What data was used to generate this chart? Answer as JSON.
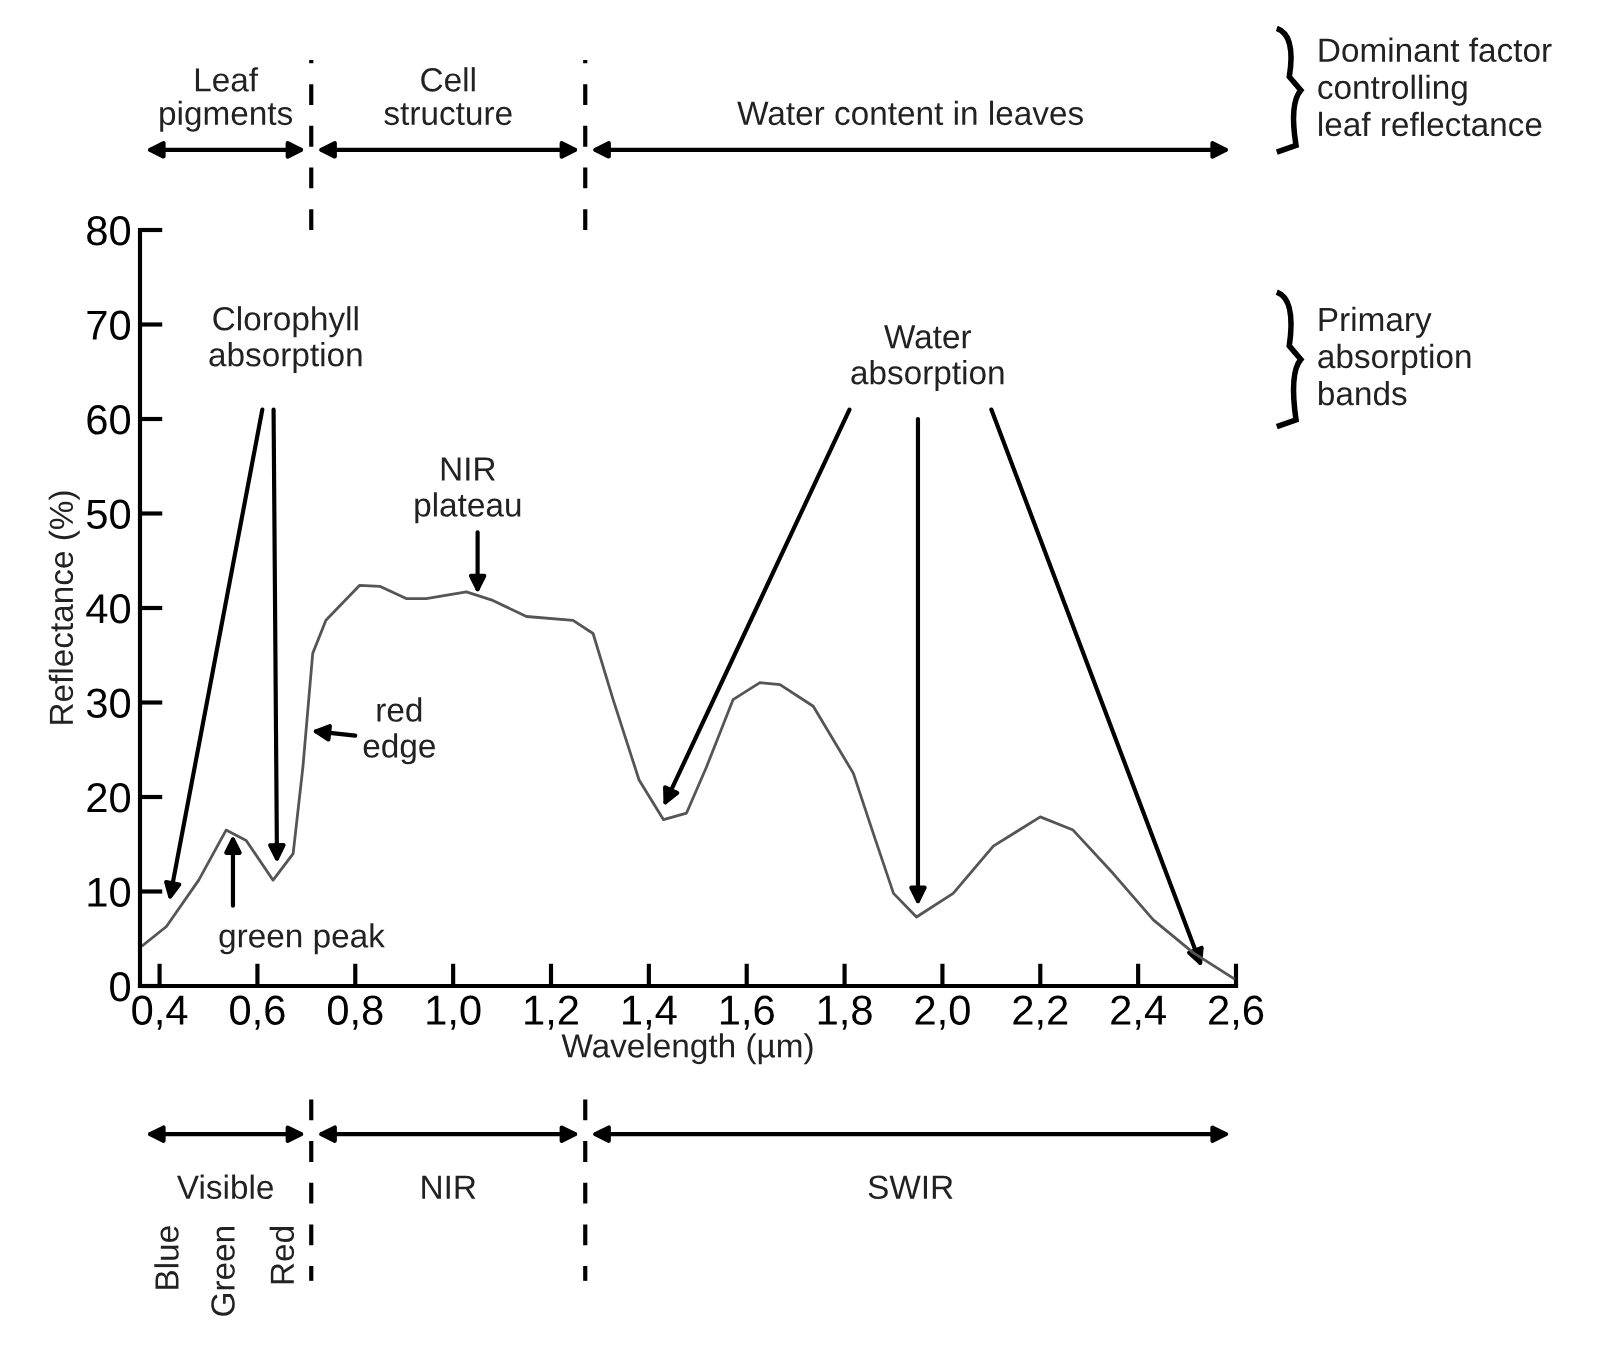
{
  "chart_data": {
    "type": "line",
    "xlabel": "Wavelength (µm)",
    "ylabel": "Reflectance (%)",
    "x": [
      0.366,
      0.414,
      0.48,
      0.536,
      0.577,
      0.632,
      0.673,
      0.693,
      0.713,
      0.74,
      0.809,
      0.85,
      0.904,
      0.945,
      1.027,
      1.081,
      1.15,
      1.245,
      1.286,
      1.327,
      1.38,
      1.43,
      1.477,
      1.518,
      1.572,
      1.627,
      1.668,
      1.736,
      1.818,
      1.859,
      1.9,
      1.947,
      2.022,
      2.104,
      2.2,
      2.267,
      2.349,
      2.431,
      2.513,
      2.595
    ],
    "series": [
      {
        "color": "#555555",
        "values": [
          4.3,
          6.3,
          11.2,
          16.5,
          15.4,
          11.2,
          14,
          23.2,
          35.2,
          38.7,
          42.4,
          42.3,
          41,
          41,
          41.7,
          40.8,
          39.1,
          38.7,
          37.3,
          30.3,
          21.8,
          17.6,
          18.3,
          23.2,
          30.3,
          32.1,
          31.9,
          29.6,
          22.5,
          16.1,
          9.8,
          7.3,
          9.8,
          14.8,
          17.9,
          16.5,
          11.9,
          7,
          3.5,
          0.8
        ]
      }
    ],
    "xlim": [
      0.36,
      2.6
    ],
    "ylim": [
      0,
      80
    ],
    "xticks": [
      {
        "value": 0.4,
        "label": "0,4"
      },
      {
        "value": 0.6,
        "label": "0,6"
      },
      {
        "value": 0.8,
        "label": "0,8"
      },
      {
        "value": 1.0,
        "label": "1,0"
      },
      {
        "value": 1.2,
        "label": "1,2"
      },
      {
        "value": 1.4,
        "label": "1,4"
      },
      {
        "value": 1.6,
        "label": "1,6"
      },
      {
        "value": 1.8,
        "label": "1,8"
      },
      {
        "value": 2.0,
        "label": "2,0"
      },
      {
        "value": 2.2,
        "label": "2,2"
      },
      {
        "value": 2.4,
        "label": "2,4"
      },
      {
        "value": 2.6,
        "label": "2,6"
      }
    ],
    "yticks": [
      0,
      10,
      20,
      30,
      40,
      50,
      60,
      70,
      80
    ],
    "grid": false,
    "legend": false,
    "marker": "none",
    "line_style": "solid",
    "annotations": [
      {
        "text": "NIR\nplateau",
        "x": 1.05,
        "y": 41.5
      },
      {
        "text": "red\nedge",
        "x": 0.71,
        "y": 27
      },
      {
        "text": "green peak",
        "x": 0.55,
        "y": 16
      },
      "Clorophyll\nabsorption",
      "Water\nabsorption",
      "Leaf\npigments",
      "Cell\nstructure",
      "Water content in leaves",
      "Visible",
      "NIR",
      "SWIR",
      "Dominant factor\ncontrolling\nleaf reflectance",
      "Primary\nabsorption\nbands",
      "Blue",
      "Green",
      "Red"
    ]
  }
}
